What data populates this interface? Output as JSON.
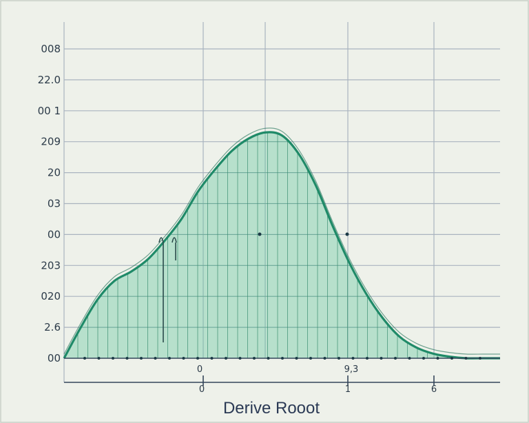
{
  "chart_data": {
    "type": "area",
    "xlabel": "Derive Rooot",
    "y_tick_labels": [
      "008",
      "22.0",
      "00 1",
      "209",
      "20",
      "03",
      "00",
      "203",
      "020",
      "2.6",
      "00"
    ],
    "x_tick_labels": [
      "0",
      "0",
      "1",
      "9,3",
      "6"
    ],
    "xlim": [
      0,
      6.5
    ],
    "ylim": [
      0,
      10
    ],
    "grid": true,
    "series": [
      {
        "x": [
          0,
          0.25,
          0.5,
          0.75,
          1.0,
          1.25,
          1.5,
          1.75,
          2.0,
          2.25,
          2.5,
          2.75,
          3.0,
          3.25,
          3.5,
          3.75,
          4.0,
          4.25,
          4.5,
          4.75,
          5.0,
          5.25,
          5.5,
          5.75,
          6.0,
          6.25,
          6.5
        ],
        "values": [
          0.0,
          1.0,
          1.9,
          2.5,
          2.8,
          3.2,
          3.8,
          4.5,
          5.4,
          6.1,
          6.7,
          7.1,
          7.3,
          7.2,
          6.6,
          5.6,
          4.3,
          3.1,
          2.1,
          1.3,
          0.7,
          0.35,
          0.15,
          0.05,
          0.0,
          0.0,
          0.0
        ]
      }
    ],
    "colors": {
      "curve": "#1f8a68",
      "fill": "#5fc59b",
      "grid": "#a9b3bf",
      "text": "#2b3a48"
    }
  }
}
